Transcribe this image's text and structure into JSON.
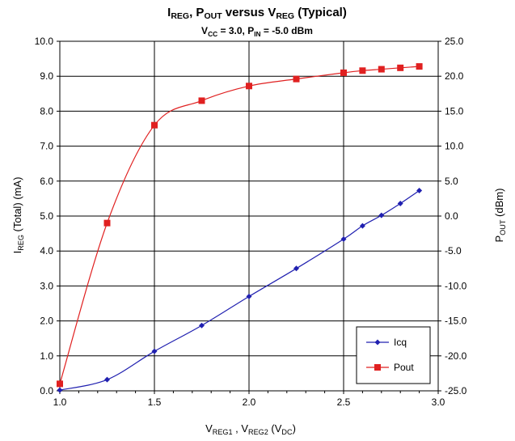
{
  "chart_data": {
    "type": "line",
    "title": {
      "parts": [
        {
          "t": "I"
        },
        {
          "t": "REG",
          "sub": true
        },
        {
          "t": ",  P"
        },
        {
          "t": "OUT",
          "sub": true
        },
        {
          "t": " versus  V"
        },
        {
          "t": "REG",
          "sub": true
        },
        {
          "t": " (Typical)"
        }
      ]
    },
    "subtitle": {
      "parts": [
        {
          "t": "V"
        },
        {
          "t": "CC",
          "sub": true
        },
        {
          "t": " = 3.0, P"
        },
        {
          "t": "IN",
          "sub": true
        },
        {
          "t": " = -5.0 dBm"
        }
      ]
    },
    "xlabel": {
      "parts": [
        {
          "t": "V"
        },
        {
          "t": "REG1",
          "sub": true
        },
        {
          "t": " , V"
        },
        {
          "t": "REG2",
          "sub": true
        },
        {
          "t": " (V"
        },
        {
          "t": "DC",
          "sub": true
        },
        {
          "t": ")"
        }
      ]
    },
    "ylabel_left": {
      "parts": [
        {
          "t": "I"
        },
        {
          "t": "REG",
          "sub": true
        },
        {
          "t": " (Total)  (mA)"
        }
      ]
    },
    "ylabel_right": {
      "parts": [
        {
          "t": "P"
        },
        {
          "t": "OUT",
          "sub": true
        },
        {
          "t": " (dBm)"
        }
      ]
    },
    "xlim": [
      1.0,
      3.0
    ],
    "ylim_left": [
      0,
      10
    ],
    "ylim_right": [
      -25,
      25
    ],
    "x_ticks": [
      "1.0",
      "1.5",
      "2.0",
      "2.5",
      "3.0"
    ],
    "y_left_ticks": [
      "0.0",
      "1.0",
      "2.0",
      "3.0",
      "4.0",
      "5.0",
      "6.0",
      "7.0",
      "8.0",
      "9.0",
      "10.0"
    ],
    "y_right_ticks": [
      "-25.0",
      "-20.0",
      "-15.0",
      "-10.0",
      "-5.0",
      "0.0",
      "5.0",
      "10.0",
      "15.0",
      "20.0",
      "25.0"
    ],
    "grid": true,
    "legend_position": "bottom-right",
    "series": [
      {
        "name": "Icq",
        "axis": "left",
        "color": "#2020b0",
        "marker": "diamond",
        "x": [
          1.0,
          1.25,
          1.5,
          1.75,
          2.0,
          2.25,
          2.5,
          2.6,
          2.7,
          2.8,
          2.9
        ],
        "y": [
          0.02,
          0.32,
          1.13,
          1.87,
          2.7,
          3.5,
          4.34,
          4.72,
          5.02,
          5.36,
          5.73
        ]
      },
      {
        "name": "Pout",
        "axis": "right",
        "color": "#e02020",
        "marker": "square",
        "x": [
          1.0,
          1.25,
          1.5,
          1.75,
          2.0,
          2.25,
          2.5,
          2.6,
          2.7,
          2.8,
          2.9
        ],
        "y": [
          -24.0,
          -1.0,
          13.0,
          16.5,
          18.6,
          19.6,
          20.5,
          20.8,
          21.0,
          21.2,
          21.4
        ]
      }
    ]
  }
}
